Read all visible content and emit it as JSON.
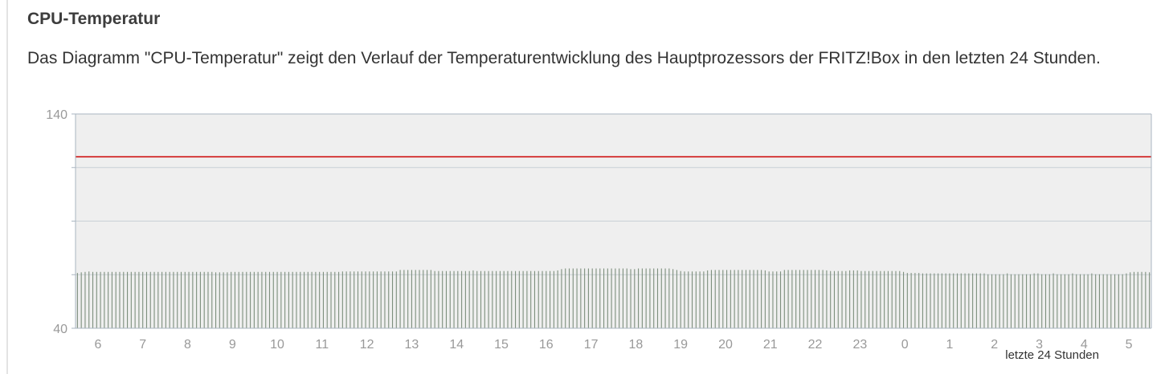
{
  "section": {
    "title": "CPU-Temperatur",
    "description": "Das Diagramm \"CPU-Temperatur\" zeigt den Verlauf der Temperaturentwicklung des Hauptprozessors der FRITZ!Box in den letzten 24 Stunden."
  },
  "chart_data": {
    "type": "bar",
    "title": "",
    "xlabel": "letzte 24 Stunden",
    "ylabel": "",
    "ylim": [
      40,
      140
    ],
    "y_tick_labels": [
      "140",
      "40"
    ],
    "grid": true,
    "hour_labels": [
      "6",
      "7",
      "8",
      "9",
      "10",
      "11",
      "12",
      "13",
      "14",
      "15",
      "16",
      "17",
      "18",
      "19",
      "20",
      "21",
      "22",
      "23",
      "0",
      "1",
      "2",
      "3",
      "4",
      "5"
    ],
    "threshold": 120,
    "values": [
      65.8,
      66.1,
      66.3,
      66.5,
      66.3,
      66.3,
      66.3,
      66.3,
      66.3,
      66.3,
      66.3,
      66.3,
      66.3,
      66.3,
      66.3,
      66.3,
      66.3,
      66.3,
      66.3,
      66.3,
      66.3,
      66.3,
      66.3,
      66.3,
      66.3,
      66.3,
      66.3,
      66.3,
      66.3,
      66.3,
      66.3,
      66.3,
      66.3,
      66.3,
      66.3,
      66.3,
      66.1,
      66.1,
      66.1,
      66.1,
      66.3,
      66.3,
      66.3,
      66.3,
      66.3,
      66.3,
      66.3,
      66.3,
      66.3,
      66.3,
      66.3,
      66.3,
      66.3,
      66.3,
      66.3,
      66.3,
      66.3,
      66.3,
      66.3,
      66.3,
      66.3,
      66.3,
      66.3,
      66.3,
      66.3,
      66.3,
      66.3,
      66.3,
      66.3,
      66.5,
      66.5,
      66.5,
      66.5,
      66.5,
      66.5,
      66.5,
      66.5,
      66.5,
      66.5,
      66.5,
      66.5,
      66.5,
      66.5,
      66.5,
      67.2,
      67.2,
      67.2,
      67.2,
      67.2,
      67.2,
      67.2,
      67.2,
      67.2,
      66.7,
      66.7,
      66.7,
      66.7,
      66.7,
      66.7,
      66.7,
      66.7,
      66.7,
      66.7,
      67.0,
      66.7,
      66.7,
      66.7,
      66.7,
      66.7,
      66.7,
      66.7,
      66.7,
      66.7,
      66.7,
      66.7,
      66.7,
      66.7,
      66.7,
      66.7,
      66.7,
      66.7,
      66.7,
      66.7,
      66.7,
      66.7,
      67.0,
      67.6,
      67.9,
      67.9,
      67.9,
      67.9,
      67.9,
      67.9,
      67.9,
      67.9,
      67.9,
      67.9,
      67.9,
      67.9,
      67.9,
      67.9,
      67.9,
      67.9,
      67.9,
      67.6,
      67.6,
      67.9,
      67.9,
      67.9,
      67.9,
      67.9,
      67.9,
      67.9,
      67.9,
      67.9,
      67.6,
      67.2,
      66.7,
      66.5,
      66.5,
      66.5,
      66.5,
      66.5,
      66.5,
      67.0,
      67.2,
      67.2,
      67.2,
      67.2,
      67.2,
      67.2,
      67.2,
      67.2,
      67.2,
      67.2,
      67.2,
      67.2,
      67.2,
      67.2,
      67.0,
      66.5,
      66.5,
      66.5,
      66.5,
      67.2,
      67.2,
      67.2,
      67.2,
      67.2,
      67.2,
      67.2,
      67.2,
      67.2,
      67.2,
      67.2,
      67.0,
      66.7,
      66.7,
      66.7,
      66.7,
      66.7,
      67.0,
      67.0,
      67.0,
      66.7,
      66.7,
      66.7,
      66.7,
      66.7,
      66.7,
      66.7,
      66.7,
      66.7,
      66.7,
      66.7,
      66.3,
      65.8,
      65.8,
      65.8,
      65.8,
      65.6,
      65.6,
      65.6,
      65.6,
      65.6,
      65.6,
      65.6,
      65.6,
      65.6,
      65.6,
      65.6,
      65.6,
      65.6,
      65.6,
      65.6,
      65.6,
      65.6,
      65.2,
      65.2,
      65.2,
      65.2,
      65.2,
      65.6,
      65.2,
      65.2,
      65.2,
      65.2,
      65.2,
      65.2,
      65.6,
      65.6,
      65.2,
      65.2,
      65.2,
      65.6,
      65.2,
      65.2,
      65.2,
      65.2,
      65.6,
      65.2,
      65.2,
      65.2,
      65.2,
      65.6,
      65.2,
      65.2,
      65.2,
      65.2,
      65.2,
      65.2,
      65.2,
      65.2,
      65.6,
      66.1,
      66.3,
      66.3,
      66.3,
      66.3,
      66.1
    ],
    "colors": {
      "plot_bg": "#efefef",
      "bar": "#7d8f7d",
      "threshold": "#cc0000",
      "grid": "#c9d0d6",
      "frame": "#aab6c0"
    }
  }
}
